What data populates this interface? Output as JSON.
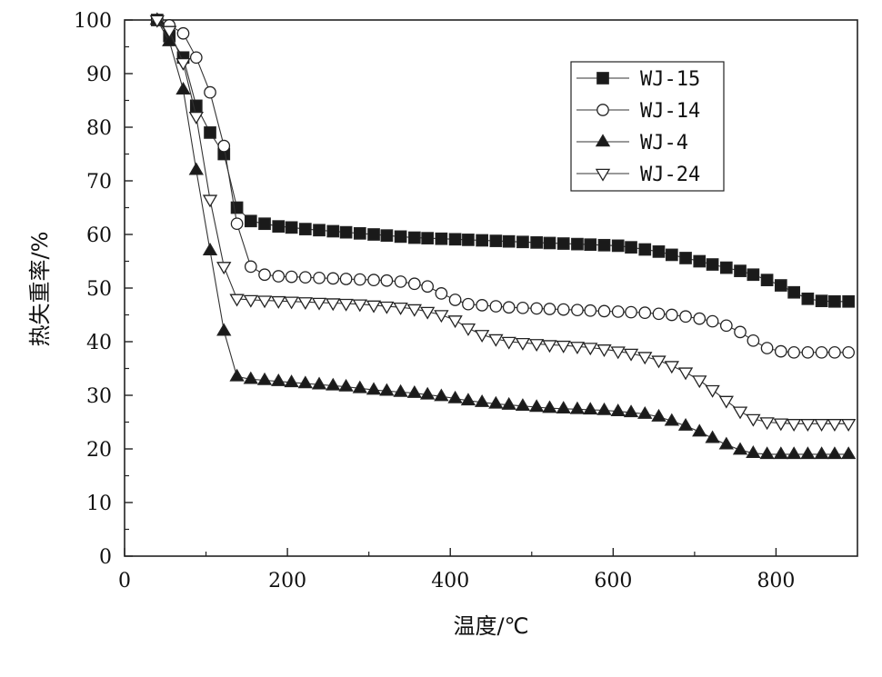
{
  "chart_data": {
    "type": "line",
    "xlabel": "温度/℃",
    "ylabel": "热失重率/%",
    "xlim": [
      0,
      900
    ],
    "ylim": [
      0,
      100
    ],
    "x_ticks": [
      0,
      200,
      400,
      600,
      800
    ],
    "x_tick_labels": [
      "0",
      "200",
      "400",
      "600",
      "800"
    ],
    "y_ticks": [
      0,
      10,
      20,
      30,
      40,
      50,
      60,
      70,
      80,
      90,
      100
    ],
    "y_tick_labels": [
      "0",
      "10",
      "20",
      "30",
      "40",
      "50",
      "60",
      "70",
      "80",
      "90",
      "100"
    ],
    "grid": false,
    "legend_position": "top-right",
    "series": [
      {
        "name": "WJ-15",
        "marker": "filled-square",
        "points": [
          [
            40,
            100
          ],
          [
            55,
            97
          ],
          [
            72,
            93
          ],
          [
            88,
            84
          ],
          [
            105,
            79
          ],
          [
            122,
            75
          ],
          [
            138,
            65
          ],
          [
            155,
            62.5
          ],
          [
            172,
            62
          ],
          [
            189,
            61.5
          ],
          [
            205,
            61.3
          ],
          [
            222,
            61
          ],
          [
            239,
            60.8
          ],
          [
            256,
            60.6
          ],
          [
            272,
            60.4
          ],
          [
            289,
            60.2
          ],
          [
            306,
            60
          ],
          [
            322,
            59.8
          ],
          [
            339,
            59.6
          ],
          [
            356,
            59.4
          ],
          [
            372,
            59.3
          ],
          [
            389,
            59.2
          ],
          [
            406,
            59.1
          ],
          [
            422,
            59
          ],
          [
            439,
            58.9
          ],
          [
            456,
            58.8
          ],
          [
            472,
            58.7
          ],
          [
            489,
            58.6
          ],
          [
            506,
            58.5
          ],
          [
            522,
            58.4
          ],
          [
            539,
            58.3
          ],
          [
            556,
            58.2
          ],
          [
            572,
            58.1
          ],
          [
            589,
            58
          ],
          [
            606,
            57.9
          ],
          [
            622,
            57.6
          ],
          [
            639,
            57.2
          ],
          [
            656,
            56.8
          ],
          [
            672,
            56.2
          ],
          [
            689,
            55.6
          ],
          [
            706,
            55
          ],
          [
            722,
            54.4
          ],
          [
            739,
            53.8
          ],
          [
            756,
            53.2
          ],
          [
            772,
            52.5
          ],
          [
            789,
            51.5
          ],
          [
            806,
            50.5
          ],
          [
            822,
            49.2
          ],
          [
            839,
            48
          ],
          [
            856,
            47.6
          ],
          [
            872,
            47.5
          ],
          [
            889,
            47.5
          ]
        ]
      },
      {
        "name": "WJ-14",
        "marker": "open-circle",
        "points": [
          [
            40,
            100
          ],
          [
            55,
            99
          ],
          [
            72,
            97.5
          ],
          [
            88,
            93
          ],
          [
            105,
            86.5
          ],
          [
            122,
            76.5
          ],
          [
            138,
            62
          ],
          [
            155,
            54
          ],
          [
            172,
            52.5
          ],
          [
            189,
            52.2
          ],
          [
            205,
            52.1
          ],
          [
            222,
            52
          ],
          [
            239,
            51.9
          ],
          [
            256,
            51.8
          ],
          [
            272,
            51.7
          ],
          [
            289,
            51.6
          ],
          [
            306,
            51.5
          ],
          [
            322,
            51.4
          ],
          [
            339,
            51.2
          ],
          [
            356,
            50.8
          ],
          [
            372,
            50.3
          ],
          [
            389,
            49
          ],
          [
            406,
            47.8
          ],
          [
            422,
            47
          ],
          [
            439,
            46.8
          ],
          [
            456,
            46.6
          ],
          [
            472,
            46.4
          ],
          [
            489,
            46.3
          ],
          [
            506,
            46.2
          ],
          [
            522,
            46.1
          ],
          [
            539,
            46
          ],
          [
            556,
            45.9
          ],
          [
            572,
            45.8
          ],
          [
            589,
            45.7
          ],
          [
            606,
            45.6
          ],
          [
            622,
            45.5
          ],
          [
            639,
            45.4
          ],
          [
            656,
            45.2
          ],
          [
            672,
            45
          ],
          [
            689,
            44.7
          ],
          [
            706,
            44.3
          ],
          [
            722,
            43.8
          ],
          [
            739,
            43
          ],
          [
            756,
            41.8
          ],
          [
            772,
            40.2
          ],
          [
            789,
            38.8
          ],
          [
            806,
            38.2
          ],
          [
            822,
            38
          ],
          [
            839,
            38
          ],
          [
            856,
            38
          ],
          [
            872,
            38
          ],
          [
            889,
            38
          ]
        ]
      },
      {
        "name": "WJ-4",
        "marker": "filled-triangle-up",
        "points": [
          [
            40,
            100
          ],
          [
            55,
            96
          ],
          [
            72,
            87
          ],
          [
            88,
            72
          ],
          [
            105,
            57
          ],
          [
            122,
            42
          ],
          [
            138,
            33.5
          ],
          [
            155,
            33
          ],
          [
            172,
            32.8
          ],
          [
            189,
            32.6
          ],
          [
            205,
            32.4
          ],
          [
            222,
            32.2
          ],
          [
            239,
            32
          ],
          [
            256,
            31.8
          ],
          [
            272,
            31.6
          ],
          [
            289,
            31.3
          ],
          [
            306,
            31
          ],
          [
            322,
            30.8
          ],
          [
            339,
            30.6
          ],
          [
            356,
            30.4
          ],
          [
            372,
            30.1
          ],
          [
            389,
            29.8
          ],
          [
            406,
            29.4
          ],
          [
            422,
            29
          ],
          [
            439,
            28.7
          ],
          [
            456,
            28.4
          ],
          [
            472,
            28.2
          ],
          [
            489,
            28
          ],
          [
            506,
            27.8
          ],
          [
            522,
            27.6
          ],
          [
            539,
            27.5
          ],
          [
            556,
            27.4
          ],
          [
            572,
            27.3
          ],
          [
            589,
            27.2
          ],
          [
            606,
            27
          ],
          [
            622,
            26.8
          ],
          [
            639,
            26.5
          ],
          [
            656,
            26
          ],
          [
            672,
            25.2
          ],
          [
            689,
            24.3
          ],
          [
            706,
            23.2
          ],
          [
            722,
            22
          ],
          [
            739,
            20.8
          ],
          [
            756,
            19.8
          ],
          [
            772,
            19.2
          ],
          [
            789,
            19
          ],
          [
            806,
            19
          ],
          [
            822,
            19
          ],
          [
            839,
            19
          ],
          [
            856,
            19
          ],
          [
            872,
            19
          ],
          [
            889,
            19
          ]
        ]
      },
      {
        "name": "WJ-24",
        "marker": "open-triangle-down",
        "points": [
          [
            40,
            100
          ],
          [
            55,
            98
          ],
          [
            72,
            92
          ],
          [
            88,
            82
          ],
          [
            105,
            66.5
          ],
          [
            122,
            54
          ],
          [
            138,
            48
          ],
          [
            155,
            47.8
          ],
          [
            172,
            47.7
          ],
          [
            189,
            47.6
          ],
          [
            205,
            47.5
          ],
          [
            222,
            47.4
          ],
          [
            239,
            47.3
          ],
          [
            256,
            47.2
          ],
          [
            272,
            47.1
          ],
          [
            289,
            47
          ],
          [
            306,
            46.8
          ],
          [
            322,
            46.6
          ],
          [
            339,
            46.4
          ],
          [
            356,
            46.1
          ],
          [
            372,
            45.6
          ],
          [
            389,
            45
          ],
          [
            406,
            44
          ],
          [
            422,
            42.5
          ],
          [
            439,
            41.3
          ],
          [
            456,
            40.5
          ],
          [
            472,
            40
          ],
          [
            489,
            39.8
          ],
          [
            506,
            39.6
          ],
          [
            522,
            39.4
          ],
          [
            539,
            39.3
          ],
          [
            556,
            39.1
          ],
          [
            572,
            38.9
          ],
          [
            589,
            38.6
          ],
          [
            606,
            38.2
          ],
          [
            622,
            37.8
          ],
          [
            639,
            37.2
          ],
          [
            656,
            36.5
          ],
          [
            672,
            35.5
          ],
          [
            689,
            34.3
          ],
          [
            706,
            32.8
          ],
          [
            722,
            31
          ],
          [
            739,
            29
          ],
          [
            756,
            27
          ],
          [
            772,
            25.6
          ],
          [
            789,
            25
          ],
          [
            806,
            24.8
          ],
          [
            822,
            24.7
          ],
          [
            839,
            24.7
          ],
          [
            856,
            24.7
          ],
          [
            872,
            24.7
          ],
          [
            889,
            24.7
          ]
        ]
      }
    ]
  }
}
